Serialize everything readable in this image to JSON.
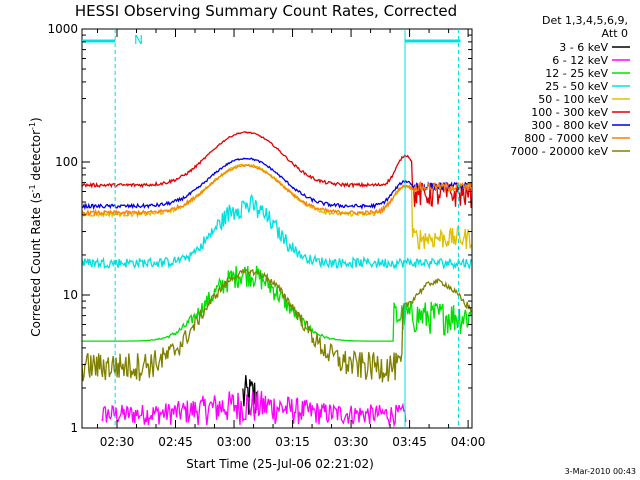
{
  "chart_data": {
    "type": "line",
    "title": "HESSI Observing Summary Count Rates, Corrected",
    "xlabel": "Start Time (25-Jul-06 02:21:02)",
    "ylabel": "Corrected Count Rate (s",
    "ylabel_exp1": "-1",
    "ylabel_mid": " detector",
    "ylabel_exp2": "-1",
    "ylabel_end": ")",
    "yscale": "log",
    "ylim": [
      1,
      1000
    ],
    "xlim_minutes": [
      0,
      99.97
    ],
    "x_ticks": [
      {
        "label": "02:30",
        "min": 8.97
      },
      {
        "label": "02:45",
        "min": 23.97
      },
      {
        "label": "03:00",
        "min": 38.97
      },
      {
        "label": "03:15",
        "min": 53.97
      },
      {
        "label": "03:30",
        "min": 68.97
      },
      {
        "label": "03:45",
        "min": 83.97
      },
      {
        "label": "04:00",
        "min": 98.97
      }
    ],
    "y_ticks": [
      {
        "label": "1",
        "value": 1
      },
      {
        "label": "10",
        "value": 10
      },
      {
        "label": "100",
        "value": 100
      },
      {
        "label": "1000",
        "value": 1000
      }
    ],
    "legend_header_1": "Det 1,3,4,5,6,9,",
    "legend_header_2": "Att 0",
    "timestamp": "3-Mar-2010 00:43",
    "annotation_n": "N",
    "night_dashed_min": [
      8.5,
      96.5
    ],
    "night_solid_min": 82.8,
    "series": [
      {
        "name": "3 - 6 keV",
        "color": "#000000"
      },
      {
        "name": "6 - 12 keV",
        "color": "#ff00ff"
      },
      {
        "name": "12 - 25 keV",
        "color": "#00e000"
      },
      {
        "name": "25 - 50 keV",
        "color": "#00e0e0"
      },
      {
        "name": "50 - 100 keV",
        "color": "#e0c000"
      },
      {
        "name": "100 - 300 keV",
        "color": "#e00000"
      },
      {
        "name": "300 - 800 keV",
        "color": "#0000e0"
      },
      {
        "name": "800 - 7000 keV",
        "color": "#ff8000"
      },
      {
        "name": "7000 - 20000 keV",
        "color": "#808000"
      }
    ]
  }
}
